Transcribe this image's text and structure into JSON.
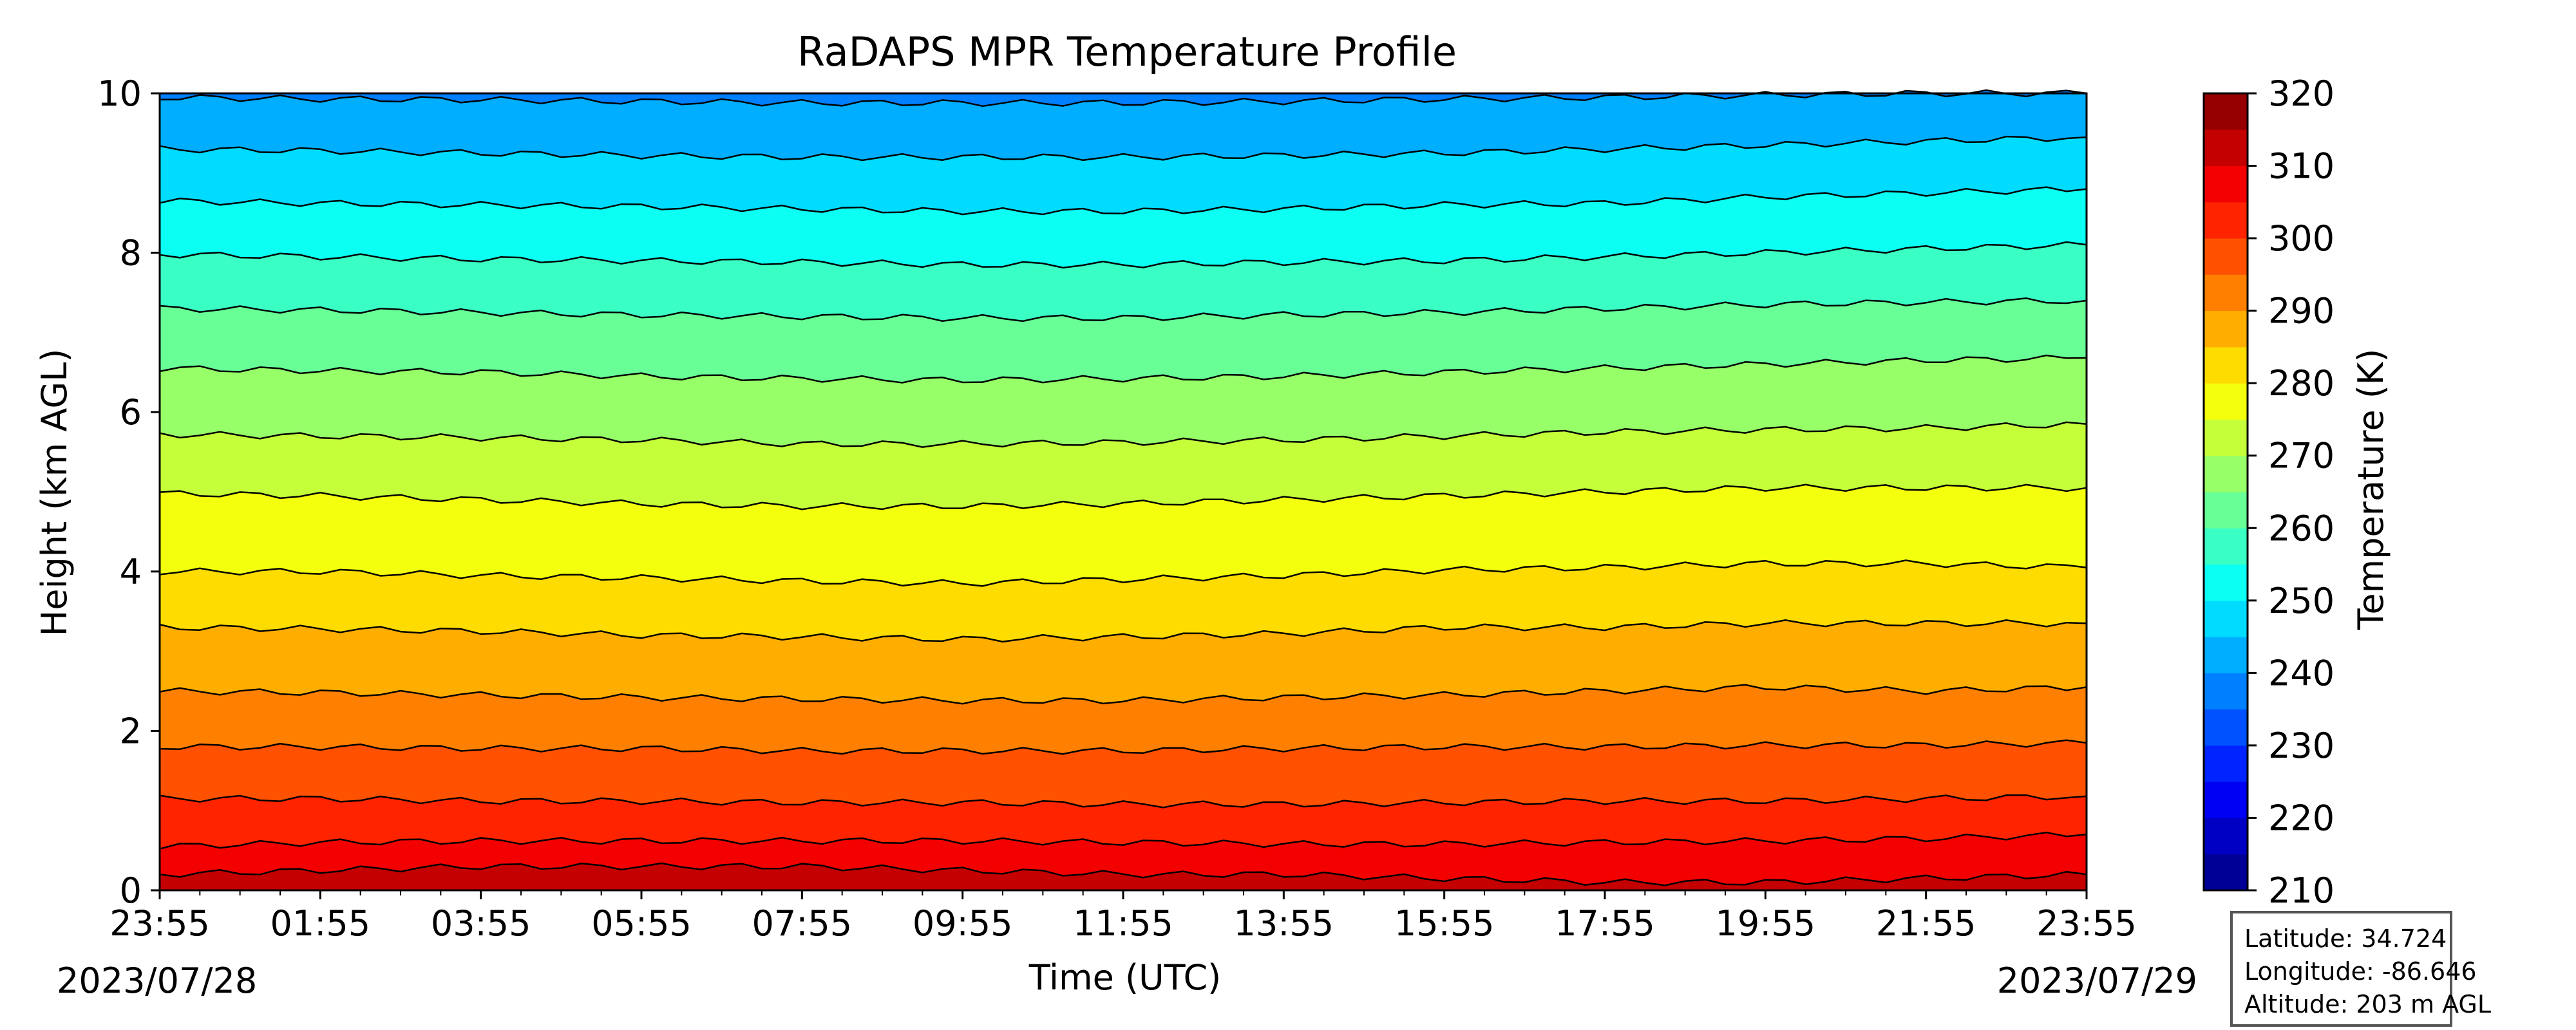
{
  "chart_data": {
    "type": "heatmap",
    "title": "RaDAPS MPR Temperature Profile",
    "xlabel": "Time (UTC)",
    "ylabel": "Height (km AGL)",
    "x_ticks": [
      "23:55",
      "01:55",
      "03:55",
      "05:55",
      "07:55",
      "09:55",
      "11:55",
      "13:55",
      "15:55",
      "17:55",
      "19:55",
      "21:55",
      "23:55"
    ],
    "y_ticks": [
      0,
      2,
      4,
      6,
      8,
      10
    ],
    "ylim": [
      0,
      10
    ],
    "start_date": "2023/07/28",
    "end_date": "2023/07/29",
    "colorbar": {
      "label": "Temperature (K)",
      "ticks": [
        210,
        220,
        230,
        240,
        250,
        260,
        270,
        280,
        290,
        300,
        310,
        320
      ],
      "range": [
        210,
        320
      ],
      "step": 5,
      "colormap": "jet"
    },
    "contour_interval_K": 5,
    "contour_lines": [
      {
        "temperature_K": 310,
        "height_km": [
          0.2,
          0.25,
          0.3,
          0.3,
          0.3,
          0.25,
          0.2,
          0.2,
          0.15,
          0.1,
          0.1,
          0.15,
          0.2
        ]
      },
      {
        "temperature_K": 305,
        "height_km": [
          0.55,
          0.6,
          0.62,
          0.62,
          0.62,
          0.62,
          0.6,
          0.58,
          0.58,
          0.6,
          0.62,
          0.65,
          0.7
        ]
      },
      {
        "temperature_K": 300,
        "height_km": [
          1.15,
          1.15,
          1.12,
          1.12,
          1.1,
          1.1,
          1.08,
          1.08,
          1.1,
          1.12,
          1.12,
          1.15,
          1.18
        ]
      },
      {
        "temperature_K": 295,
        "height_km": [
          1.8,
          1.8,
          1.78,
          1.78,
          1.75,
          1.75,
          1.75,
          1.78,
          1.8,
          1.8,
          1.82,
          1.82,
          1.85
        ]
      },
      {
        "temperature_K": 290,
        "height_km": [
          2.5,
          2.48,
          2.45,
          2.42,
          2.4,
          2.38,
          2.38,
          2.42,
          2.45,
          2.5,
          2.55,
          2.5,
          2.55
        ]
      },
      {
        "temperature_K": 285,
        "height_km": [
          3.3,
          3.28,
          3.25,
          3.2,
          3.18,
          3.15,
          3.18,
          3.22,
          3.3,
          3.3,
          3.35,
          3.35,
          3.35
        ]
      },
      {
        "temperature_K": 280,
        "height_km": [
          4.0,
          4.0,
          3.95,
          3.92,
          3.88,
          3.85,
          3.9,
          3.95,
          4.02,
          4.05,
          4.1,
          4.1,
          4.05
        ]
      },
      {
        "temperature_K": 275,
        "height_km": [
          4.98,
          4.95,
          4.9,
          4.85,
          4.82,
          4.82,
          4.85,
          4.9,
          4.95,
          5.0,
          5.05,
          5.05,
          5.05
        ]
      },
      {
        "temperature_K": 270,
        "height_km": [
          5.72,
          5.7,
          5.68,
          5.65,
          5.6,
          5.6,
          5.62,
          5.65,
          5.7,
          5.75,
          5.78,
          5.8,
          5.85
        ]
      },
      {
        "temperature_K": 265,
        "height_km": [
          6.55,
          6.52,
          6.5,
          6.45,
          6.42,
          6.4,
          6.42,
          6.45,
          6.5,
          6.55,
          6.6,
          6.65,
          6.68
        ]
      },
      {
        "temperature_K": 260,
        "height_km": [
          7.3,
          7.28,
          7.25,
          7.22,
          7.2,
          7.18,
          7.18,
          7.22,
          7.25,
          7.3,
          7.35,
          7.38,
          7.4
        ]
      },
      {
        "temperature_K": 255,
        "height_km": [
          7.98,
          7.95,
          7.92,
          7.9,
          7.88,
          7.85,
          7.85,
          7.88,
          7.9,
          7.95,
          8.0,
          8.05,
          8.1
        ]
      },
      {
        "temperature_K": 250,
        "height_km": [
          8.65,
          8.62,
          8.6,
          8.58,
          8.55,
          8.52,
          8.52,
          8.55,
          8.6,
          8.62,
          8.7,
          8.75,
          8.8
        ]
      },
      {
        "temperature_K": 245,
        "height_km": [
          9.3,
          9.28,
          9.25,
          9.22,
          9.2,
          9.2,
          9.2,
          9.22,
          9.25,
          9.3,
          9.35,
          9.4,
          9.45
        ]
      },
      {
        "temperature_K": 240,
        "height_km": [
          9.95,
          9.93,
          9.92,
          9.9,
          9.88,
          9.88,
          9.88,
          9.9,
          9.93,
          9.95,
          9.98,
          10.0,
          10.0
        ]
      }
    ]
  },
  "station": {
    "latitude": "Latitude: 34.724",
    "longitude": "Longitude: -86.646",
    "altitude": "Altitude: 203 m AGL"
  }
}
